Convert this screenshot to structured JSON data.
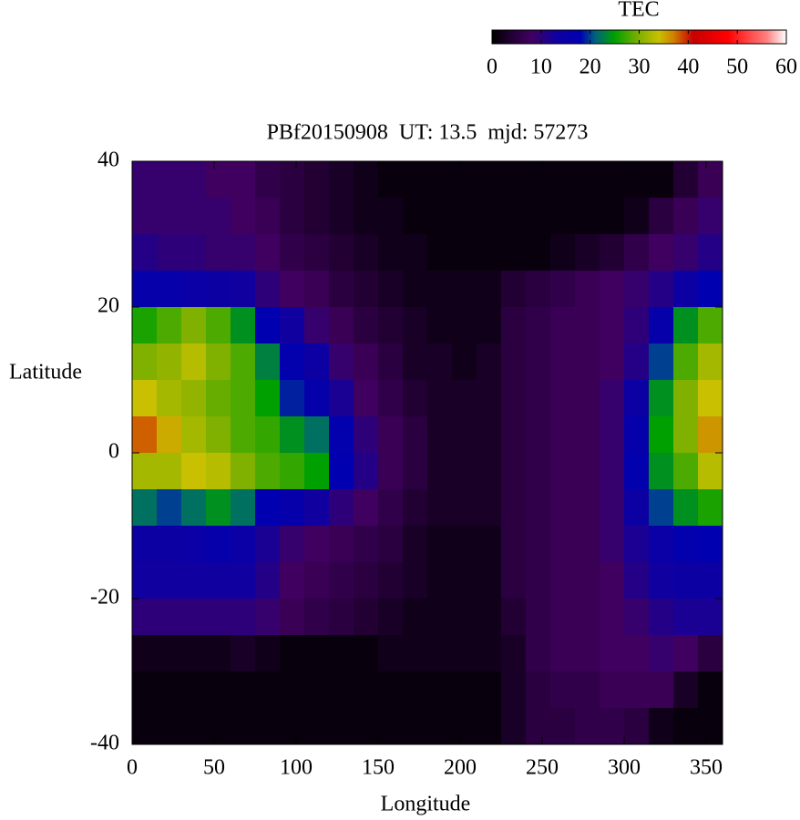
{
  "chart_data": {
    "type": "heatmap",
    "title": "PBf20150908  UT: 13.5  mjd: 57273",
    "xlabel": "Longitude",
    "ylabel": "Latitude",
    "colorbar_label": "TEC",
    "x": [
      7.5,
      22.5,
      37.5,
      52.5,
      67.5,
      82.5,
      97.5,
      112.5,
      127.5,
      142.5,
      157.5,
      172.5,
      187.5,
      202.5,
      217.5,
      232.5,
      247.5,
      262.5,
      277.5,
      292.5,
      307.5,
      322.5,
      337.5,
      352.5
    ],
    "y": [
      37.5,
      32.5,
      27.5,
      22.5,
      17.5,
      12.5,
      7.5,
      2.5,
      -2.5,
      -7.5,
      -12.5,
      -17.5,
      -22.5,
      -27.5,
      -32.5,
      -37.5
    ],
    "z": [
      [
        9,
        9,
        9,
        8,
        8,
        6,
        5,
        4,
        3,
        2,
        1,
        1,
        1,
        1,
        1,
        1,
        1,
        1,
        1,
        1,
        1,
        1,
        4,
        7
      ],
      [
        9,
        9,
        9,
        9,
        8,
        7,
        5,
        4,
        3,
        2,
        2,
        1,
        1,
        1,
        1,
        1,
        1,
        1,
        1,
        1,
        2,
        5,
        7,
        9
      ],
      [
        11,
        10,
        10,
        9,
        9,
        8,
        6,
        5,
        4,
        3,
        2,
        2,
        1,
        1,
        1,
        1,
        1,
        2,
        3,
        4,
        6,
        8,
        9,
        11
      ],
      [
        16,
        16,
        15,
        14,
        13,
        10,
        8,
        7,
        5,
        4,
        3,
        2,
        2,
        2,
        2,
        4,
        5,
        6,
        7,
        8,
        9,
        11,
        14,
        18
      ],
      [
        26,
        28,
        30,
        28,
        24,
        18,
        13,
        9,
        7,
        5,
        4,
        3,
        2,
        2,
        2,
        5,
        6,
        7,
        7,
        8,
        10,
        16,
        24,
        28
      ],
      [
        30,
        31,
        33,
        30,
        28,
        23,
        17,
        14,
        9,
        7,
        5,
        3,
        3,
        2,
        3,
        5,
        6,
        7,
        7,
        8,
        11,
        20,
        28,
        32
      ],
      [
        34,
        32,
        31,
        29,
        28,
        25,
        19,
        16,
        12,
        8,
        6,
        4,
        3,
        3,
        3,
        5,
        6,
        7,
        7,
        9,
        14,
        24,
        30,
        34
      ],
      [
        38,
        35,
        32,
        30,
        28,
        27,
        24,
        22,
        17,
        10,
        7,
        5,
        3,
        3,
        3,
        5,
        6,
        7,
        7,
        9,
        16,
        25,
        30,
        36
      ],
      [
        32,
        32,
        34,
        33,
        30,
        28,
        27,
        25,
        18,
        11,
        7,
        5,
        3,
        3,
        3,
        5,
        6,
        7,
        7,
        9,
        17,
        24,
        28,
        33
      ],
      [
        22,
        20,
        22,
        24,
        22,
        18,
        16,
        13,
        10,
        8,
        6,
        4,
        3,
        3,
        3,
        5,
        6,
        7,
        7,
        9,
        14,
        20,
        24,
        26
      ],
      [
        14,
        14,
        15,
        16,
        15,
        12,
        9,
        8,
        7,
        6,
        5,
        3,
        2,
        2,
        2,
        5,
        6,
        7,
        7,
        9,
        12,
        15,
        17,
        18
      ],
      [
        13,
        13,
        13,
        13,
        13,
        11,
        8,
        7,
        6,
        5,
        4,
        3,
        2,
        2,
        2,
        5,
        6,
        7,
        7,
        8,
        11,
        13,
        14,
        14
      ],
      [
        10,
        10,
        10,
        10,
        10,
        9,
        7,
        6,
        5,
        4,
        3,
        2,
        2,
        2,
        2,
        4,
        6,
        7,
        7,
        8,
        9,
        11,
        12,
        12
      ],
      [
        2,
        2,
        2,
        2,
        3,
        2,
        1,
        1,
        1,
        1,
        2,
        2,
        2,
        2,
        2,
        3,
        6,
        7,
        7,
        8,
        8,
        9,
        8,
        5
      ],
      [
        1,
        1,
        1,
        1,
        1,
        1,
        1,
        1,
        1,
        1,
        1,
        1,
        1,
        1,
        1,
        3,
        5,
        6,
        6,
        7,
        7,
        7,
        3,
        1
      ],
      [
        1,
        1,
        1,
        1,
        1,
        1,
        1,
        1,
        1,
        1,
        1,
        1,
        1,
        1,
        1,
        3,
        5,
        5,
        6,
        6,
        5,
        2,
        1,
        1
      ]
    ],
    "xlim": [
      0,
      360
    ],
    "xticks": [
      0,
      50,
      100,
      150,
      200,
      250,
      300,
      350
    ],
    "ylim": [
      -40,
      40
    ],
    "yticks": [
      -40,
      -20,
      0,
      20,
      40
    ],
    "zlim": [
      0,
      60
    ],
    "zticks": [
      0,
      10,
      20,
      30,
      40,
      50,
      60
    ],
    "colorscale": [
      [
        0,
        "#000000"
      ],
      [
        5,
        "#2a0040"
      ],
      [
        8,
        "#400060"
      ],
      [
        13,
        "#1000a0"
      ],
      [
        18,
        "#0000b0"
      ],
      [
        21,
        "#006080"
      ],
      [
        25,
        "#00a000"
      ],
      [
        30,
        "#80b000"
      ],
      [
        34,
        "#c8c000"
      ],
      [
        37,
        "#d08000"
      ],
      [
        41,
        "#c80000"
      ],
      [
        48,
        "#ff0000"
      ],
      [
        56,
        "#ff8080"
      ],
      [
        60,
        "#ffffff"
      ]
    ]
  }
}
